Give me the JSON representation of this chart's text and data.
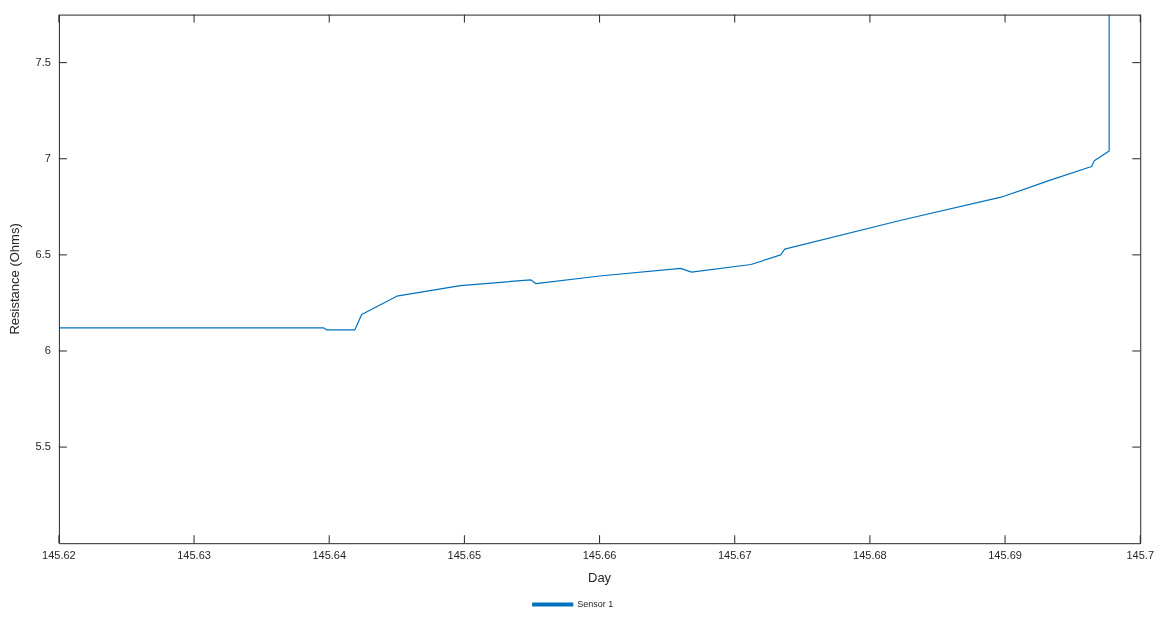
{
  "chart_data": {
    "type": "line",
    "xlabel": "Day",
    "ylabel": "Resistance (Ohms)",
    "xlim": [
      145.62,
      145.7
    ],
    "xticks": [
      145.62,
      145.63,
      145.64,
      145.65,
      145.66,
      145.67,
      145.68,
      145.69,
      145.7
    ],
    "ylim": [
      5,
      7.75
    ],
    "yticks": [
      5.5,
      6,
      6.5,
      7,
      7.5
    ],
    "grid": false,
    "legend": "bottom",
    "marker": "none",
    "line_style": "solid",
    "series": [
      {
        "name": "Sensor 1",
        "color": "#0072bd",
        "x": [
          145.62,
          145.63,
          145.6396,
          145.6398,
          145.6419,
          145.6424,
          145.645,
          145.6497,
          145.6549,
          145.6553,
          145.66,
          145.666,
          145.6668,
          145.6712,
          145.6734,
          145.6737,
          145.6823,
          145.6897,
          145.6934,
          145.6964,
          145.6966,
          145.6977,
          145.6977
        ],
        "values": [
          6.12,
          6.12,
          6.12,
          6.11,
          6.11,
          6.19,
          6.285,
          6.34,
          6.37,
          6.35,
          6.39,
          6.43,
          6.41,
          6.45,
          6.5,
          6.53,
          6.68,
          6.8,
          6.89,
          6.96,
          6.99,
          7.04,
          7.75
        ]
      }
    ]
  }
}
